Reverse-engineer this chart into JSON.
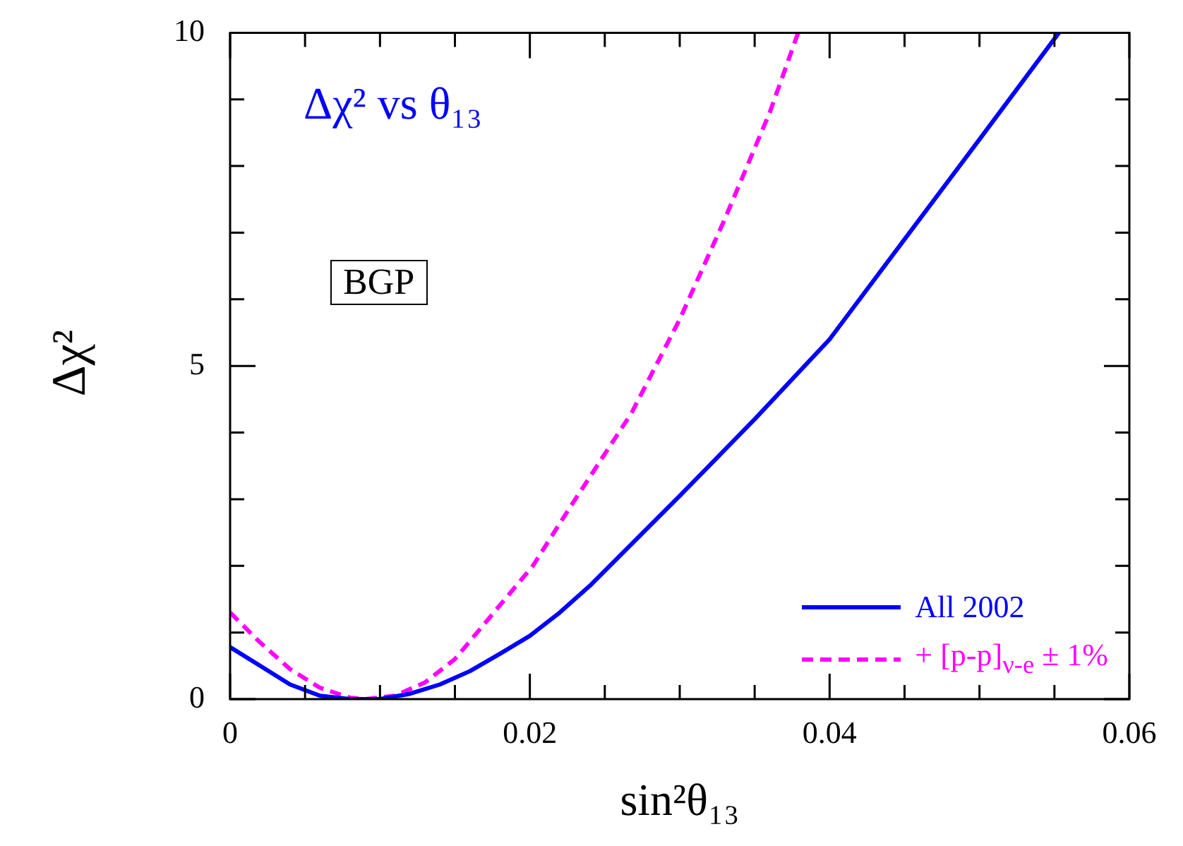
{
  "chart_data": {
    "type": "line",
    "title": "Δχ² vs θ₁₃",
    "xlabel": "sin²θ₁₃",
    "ylabel": "Δχ²",
    "annotations": [
      "BGP"
    ],
    "xlim": [
      0,
      0.06
    ],
    "ylim": [
      0,
      10
    ],
    "xticks": [
      0,
      {
        "value": 0.005,
        "label": null
      },
      {
        "value": 0.01,
        "label": null
      },
      {
        "value": 0.015,
        "label": null
      },
      0.02,
      {
        "value": 0.025,
        "label": null
      },
      {
        "value": 0.03,
        "label": null
      },
      {
        "value": 0.035,
        "label": null
      },
      0.04,
      {
        "value": 0.045,
        "label": null
      },
      {
        "value": 0.05,
        "label": null
      },
      {
        "value": 0.055,
        "label": null
      },
      0.06
    ],
    "yticks": [
      0,
      {
        "value": 1,
        "label": null
      },
      {
        "value": 2,
        "label": null
      },
      {
        "value": 3,
        "label": null
      },
      {
        "value": 4,
        "label": null
      },
      5,
      {
        "value": 6,
        "label": null
      },
      {
        "value": 7,
        "label": null
      },
      {
        "value": 8,
        "label": null
      },
      {
        "value": 9,
        "label": null
      },
      10
    ],
    "grid": false,
    "legend": "bottom right",
    "marker": "none",
    "series": [
      {
        "name": "All 2002",
        "color": "#0000ff",
        "line_style": "solid",
        "x": [
          0,
          0.002,
          0.004,
          0.006,
          0.008,
          0.01,
          0.012,
          0.014,
          0.016,
          0.018,
          0.02,
          0.022,
          0.024,
          0.026,
          0.028,
          0.03,
          0.035,
          0.04,
          0.045,
          0.05,
          0.0553
        ],
        "values": [
          0.78,
          0.5,
          0.22,
          0.05,
          0,
          0,
          0.08,
          0.22,
          0.42,
          0.68,
          0.95,
          1.3,
          1.7,
          2.15,
          2.6,
          3.05,
          4.2,
          5.4,
          6.9,
          8.4,
          10
        ]
      },
      {
        "name": "+ [p-p]$_{ν-e}$ ± 1%",
        "color": "#ff00ff",
        "line_style": "dashed",
        "x": [
          0,
          0.002,
          0.004,
          0.006,
          0.008,
          0.009,
          0.011,
          0.013,
          0.015,
          0.0176,
          0.0202,
          0.0226,
          0.0268,
          0.03,
          0.033,
          0.036,
          0.0379
        ],
        "values": [
          1.3,
          0.85,
          0.45,
          0.17,
          0.02,
          0,
          0.05,
          0.25,
          0.6,
          1.3,
          2.0,
          2.85,
          4.3,
          5.7,
          7.2,
          8.8,
          10
        ]
      }
    ]
  }
}
